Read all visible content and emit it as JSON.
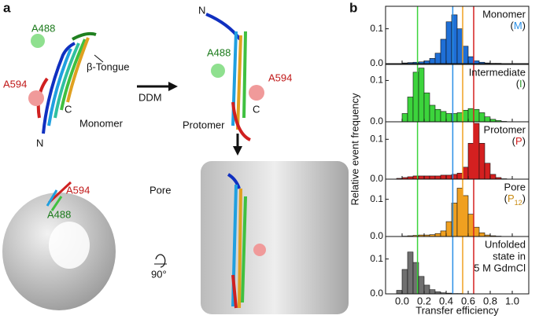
{
  "panel_a": {
    "panel_label": "a",
    "labels": [
      "A488",
      "β-Tongue",
      "A594",
      "C",
      "N",
      "Monomer",
      "DDM",
      "N",
      "A488",
      "A594",
      "C",
      "Protomer",
      "A594",
      "A488",
      "Pore",
      "90°"
    ]
  },
  "panel_b": {
    "panel_label": "b",
    "ylabel": "Relative event frequency",
    "xlabel": "Transfer efficiency",
    "xlim": [
      -0.15,
      1.15
    ],
    "xticks": [
      {
        "value": 0,
        "label": "0.0"
      },
      0.2,
      0.4,
      0.6,
      0.8,
      {
        "value": 1,
        "label": "1.0"
      }
    ],
    "reference_lines": [
      {
        "value": 0.14,
        "color": "#3cd43c"
      },
      {
        "value": 0.46,
        "color": "#2a8fe6"
      },
      {
        "value": 0.55,
        "color": "#f0a020"
      },
      {
        "value": 0.65,
        "color": "#d42020"
      }
    ]
  },
  "chart_data": [
    {
      "type": "histogram",
      "title_lines": [
        "Monomer"
      ],
      "symbol_parts": [
        "(",
        "M",
        ")"
      ],
      "color": "#1f6fd6",
      "symbol_color": "#2a8fe6",
      "bins": [
        -0.05,
        0,
        0.05,
        0.1,
        0.15,
        0.2,
        0.25,
        0.3,
        0.35,
        0.4,
        0.45,
        0.5,
        0.55,
        0.6,
        0.65,
        0.7,
        0.75,
        0.8,
        0.85,
        0.9,
        0.95,
        1.0
      ],
      "values": [
        0,
        0.002,
        0.003,
        0.004,
        0.005,
        0.008,
        0.015,
        0.03,
        0.07,
        0.12,
        0.14,
        0.1,
        0.05,
        0.02,
        0.008,
        0.004,
        0.002,
        0.001,
        0.001,
        0,
        0
      ],
      "ylim": [
        0,
        0.16
      ],
      "yticks": [
        {
          "value": 0,
          "label": "0.0"
        },
        0.1
      ]
    },
    {
      "type": "histogram",
      "title_lines": [
        "Intermediate"
      ],
      "symbol_parts": [
        "(",
        "I",
        ")"
      ],
      "color": "#3cd43c",
      "symbol_color": "#2a9a2a",
      "bins": [
        -0.05,
        0,
        0.05,
        0.1,
        0.15,
        0.2,
        0.25,
        0.3,
        0.35,
        0.4,
        0.45,
        0.5,
        0.55,
        0.6,
        0.65,
        0.7,
        0.75,
        0.8,
        0.85,
        0.9,
        0.95,
        1.0
      ],
      "values": [
        0,
        0.02,
        0.06,
        0.12,
        0.13,
        0.07,
        0.04,
        0.03,
        0.025,
        0.02,
        0.02,
        0.022,
        0.028,
        0.032,
        0.03,
        0.022,
        0.012,
        0.006,
        0.003,
        0.001,
        0
      ],
      "ylim": [
        0,
        0.135
      ],
      "yticks": [
        {
          "value": 0,
          "label": "0.0"
        },
        0.1
      ]
    },
    {
      "type": "histogram",
      "title_lines": [
        "Protomer"
      ],
      "symbol_parts": [
        "(",
        "P",
        ")"
      ],
      "color": "#d42020",
      "symbol_color": "#d42020",
      "bins": [
        -0.05,
        0,
        0.05,
        0.1,
        0.15,
        0.2,
        0.25,
        0.3,
        0.35,
        0.4,
        0.45,
        0.5,
        0.55,
        0.6,
        0.65,
        0.7,
        0.75,
        0.8,
        0.85,
        0.9,
        0.95,
        1.0
      ],
      "values": [
        0.002,
        0.004,
        0.006,
        0.008,
        0.008,
        0.008,
        0.008,
        0.008,
        0.01,
        0.01,
        0.012,
        0.015,
        0.03,
        0.09,
        0.14,
        0.09,
        0.04,
        0.012,
        0.004,
        0.001,
        0
      ],
      "ylim": [
        0,
        0.14
      ],
      "yticks": [
        {
          "value": 0,
          "label": "0.0"
        },
        0.1
      ]
    },
    {
      "type": "histogram",
      "title_lines": [
        "Pore"
      ],
      "symbol_parts": [
        "(",
        "P",
        "12",
        ")"
      ],
      "color": "#f0a020",
      "symbol_color": "#c88a10",
      "bins": [
        -0.05,
        0,
        0.05,
        0.1,
        0.15,
        0.2,
        0.25,
        0.3,
        0.35,
        0.4,
        0.45,
        0.5,
        0.55,
        0.6,
        0.65,
        0.7,
        0.75,
        0.8,
        0.85,
        0.9,
        0.95,
        1.0
      ],
      "values": [
        0,
        0.001,
        0.002,
        0.003,
        0.004,
        0.004,
        0.005,
        0.008,
        0.015,
        0.04,
        0.09,
        0.13,
        0.11,
        0.06,
        0.025,
        0.01,
        0.004,
        0.002,
        0.001,
        0,
        0
      ],
      "ylim": [
        0,
        0.15
      ],
      "yticks": [
        {
          "value": 0,
          "label": "0.0"
        },
        0.1
      ]
    },
    {
      "type": "histogram",
      "title_lines": [
        "Unfolded",
        "state in",
        "5 M GdmCl"
      ],
      "color": "#707070",
      "bins": [
        -0.05,
        0,
        0.05,
        0.1,
        0.15,
        0.2,
        0.25,
        0.3,
        0.35,
        0.4,
        0.45,
        0.5,
        0.55,
        0.6,
        0.65,
        0.7,
        0.75,
        0.8,
        0.85,
        0.9,
        0.95,
        1.0
      ],
      "values": [
        0.01,
        0.07,
        0.12,
        0.09,
        0.05,
        0.025,
        0.012,
        0.006,
        0.003,
        0.002,
        0.001,
        0.001,
        0,
        0,
        0,
        0,
        0,
        0,
        0,
        0,
        0
      ],
      "ylim": [
        0,
        0.16
      ],
      "yticks": [
        {
          "value": 0,
          "label": "0.0"
        },
        0.1
      ]
    }
  ]
}
